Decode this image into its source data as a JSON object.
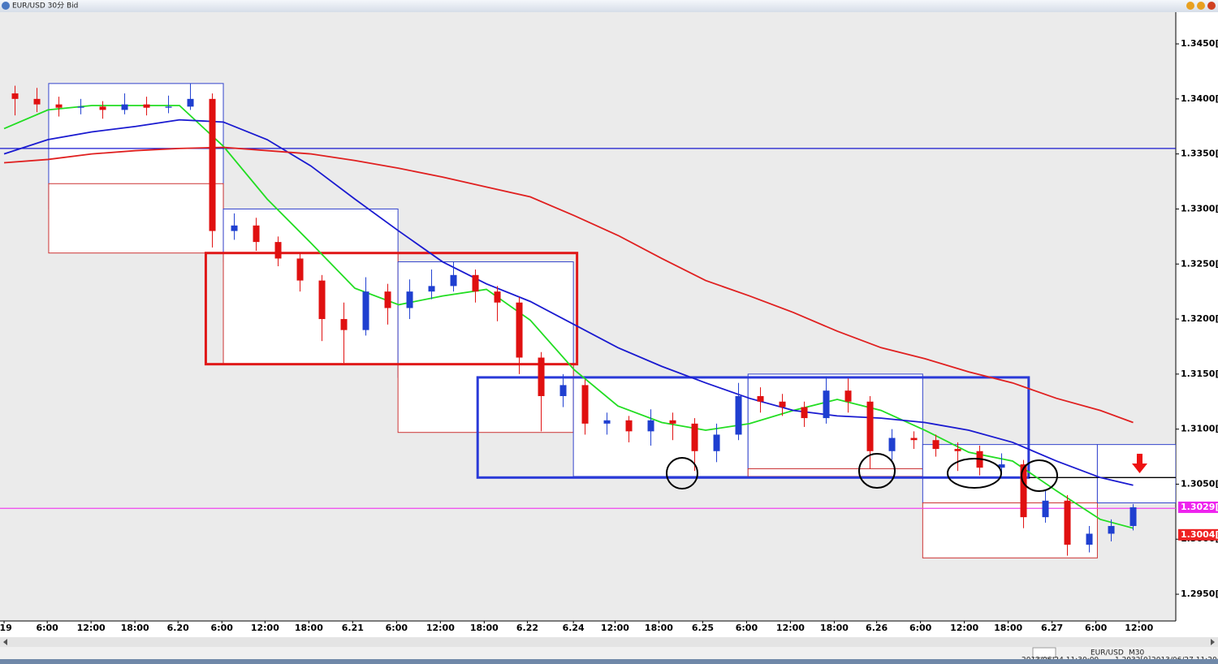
{
  "window": {
    "title": "EUR/USD 30分 Bid"
  },
  "chart_data": {
    "type": "candlestick",
    "x": [
      1.5,
      4.5,
      7.5,
      10.5,
      13.5,
      16.5,
      19.5,
      22.5,
      25.5,
      28.5,
      31.5,
      34.5,
      37.5,
      40.5,
      43.5,
      46.5,
      49.5,
      52.5,
      55.5,
      58.5,
      61.5,
      64.5,
      67.5,
      70.5,
      73.5,
      76.5,
      79.5,
      82.5,
      85.5,
      88.5,
      91.5,
      94.5,
      97.5,
      100.5,
      103.5,
      106.5,
      109.5,
      112.5,
      115.5,
      118.5,
      121.5,
      124.5,
      127.5,
      130.5,
      133.5,
      136.5,
      139.5,
      142.5,
      145.5,
      148.5,
      151.5,
      154.5
    ],
    "open": [
      1.3405,
      1.34,
      1.3395,
      1.3392,
      1.3393,
      1.339,
      1.3395,
      1.3392,
      1.3393,
      1.34,
      1.328,
      1.3285,
      1.327,
      1.3255,
      1.3235,
      1.32,
      1.319,
      1.3225,
      1.321,
      1.3225,
      1.323,
      1.324,
      1.3225,
      1.3215,
      1.3165,
      1.313,
      1.314,
      1.3105,
      1.3108,
      1.3098,
      1.3108,
      1.3105,
      1.308,
      1.3095,
      1.313,
      1.3125,
      1.312,
      1.311,
      1.3135,
      1.3125,
      1.308,
      1.3092,
      1.309,
      1.3082,
      1.308,
      1.3065,
      1.3068,
      1.302,
      1.3035,
      1.2995,
      1.3005,
      1.3012
    ],
    "high": [
      1.3412,
      1.341,
      1.3402,
      1.34,
      1.3398,
      1.3405,
      1.3402,
      1.3403,
      1.3414,
      1.3405,
      1.3296,
      1.3292,
      1.3275,
      1.326,
      1.324,
      1.3215,
      1.3238,
      1.3232,
      1.3236,
      1.3245,
      1.3252,
      1.3245,
      1.323,
      1.322,
      1.317,
      1.315,
      1.3145,
      1.3115,
      1.3112,
      1.3118,
      1.3115,
      1.311,
      1.3105,
      1.3142,
      1.3138,
      1.3132,
      1.3125,
      1.3148,
      1.3146,
      1.313,
      1.31,
      1.3098,
      1.3095,
      1.3088,
      1.3085,
      1.3078,
      1.3072,
      1.3045,
      1.304,
      1.3012,
      1.3018,
      1.3032
    ],
    "low": [
      1.3385,
      1.3388,
      1.3384,
      1.3386,
      1.3382,
      1.3386,
      1.3385,
      1.3387,
      1.339,
      1.3265,
      1.3272,
      1.3262,
      1.3248,
      1.3225,
      1.318,
      1.316,
      1.3185,
      1.3195,
      1.32,
      1.3218,
      1.3225,
      1.3215,
      1.3198,
      1.315,
      1.3098,
      1.312,
      1.3095,
      1.3095,
      1.3088,
      1.3085,
      1.309,
      1.3062,
      1.307,
      1.309,
      1.3115,
      1.3112,
      1.3102,
      1.3105,
      1.3115,
      1.3064,
      1.3072,
      1.3082,
      1.3075,
      1.3062,
      1.3058,
      1.306,
      1.301,
      1.3015,
      1.2985,
      1.2988,
      1.2998,
      1.3008
    ],
    "close": [
      1.34,
      1.3395,
      1.3392,
      1.3393,
      1.339,
      1.3395,
      1.3392,
      1.3393,
      1.34,
      1.328,
      1.3285,
      1.327,
      1.3255,
      1.3235,
      1.32,
      1.319,
      1.3225,
      1.321,
      1.3225,
      1.323,
      1.324,
      1.3225,
      1.3215,
      1.3165,
      1.313,
      1.314,
      1.3105,
      1.3108,
      1.3098,
      1.3108,
      1.3105,
      1.308,
      1.3095,
      1.313,
      1.3125,
      1.312,
      1.311,
      1.3135,
      1.3125,
      1.308,
      1.3092,
      1.309,
      1.3082,
      1.308,
      1.3065,
      1.3068,
      1.302,
      1.3035,
      1.2995,
      1.3005,
      1.3012,
      1.3029
    ],
    "up_color": "#1f3fd0",
    "down_color": "#e01010",
    "lines": [
      {
        "color": "#22dd22",
        "x": [
          0,
          6,
          12,
          18,
          24,
          30,
          36,
          42,
          48,
          54,
          60,
          66,
          72,
          78,
          84,
          90,
          96,
          102,
          108,
          114,
          120,
          126,
          132,
          138,
          144,
          150,
          154.5
        ],
        "values": [
          1.3373,
          1.339,
          1.3394,
          1.3394,
          1.3394,
          1.3357,
          1.3309,
          1.3269,
          1.3228,
          1.3213,
          1.3221,
          1.3227,
          1.3199,
          1.3154,
          1.3121,
          1.3106,
          1.3099,
          1.3105,
          1.3117,
          1.3127,
          1.3117,
          1.3099,
          1.3079,
          1.3071,
          1.3044,
          1.3018,
          1.301
        ]
      },
      {
        "color": "#1a1ad0",
        "x": [
          0,
          6,
          12,
          18,
          24,
          30,
          36,
          42,
          48,
          54,
          60,
          66,
          72,
          78,
          84,
          90,
          96,
          102,
          108,
          114,
          120,
          126,
          132,
          138,
          144,
          150,
          154.5
        ],
        "values": [
          1.335,
          1.3363,
          1.337,
          1.3375,
          1.3381,
          1.3379,
          1.3363,
          1.3339,
          1.3309,
          1.328,
          1.3252,
          1.3232,
          1.3216,
          1.3195,
          1.3174,
          1.3157,
          1.3142,
          1.3128,
          1.3117,
          1.3112,
          1.311,
          1.3106,
          1.3099,
          1.3088,
          1.3071,
          1.3056,
          1.3049
        ]
      },
      {
        "color": "#e02020",
        "x": [
          0,
          6,
          12,
          18,
          24,
          30,
          36,
          42,
          48,
          54,
          60,
          66,
          72,
          78,
          84,
          90,
          96,
          102,
          108,
          114,
          120,
          126,
          132,
          138,
          144,
          150,
          154.5
        ],
        "values": [
          1.3342,
          1.3345,
          1.335,
          1.3353,
          1.3355,
          1.3356,
          1.3353,
          1.335,
          1.3344,
          1.3337,
          1.3329,
          1.332,
          1.3311,
          1.3294,
          1.3276,
          1.3255,
          1.3235,
          1.3221,
          1.3206,
          1.3189,
          1.3174,
          1.3164,
          1.3152,
          1.3142,
          1.3128,
          1.3117,
          1.3106
        ]
      }
    ],
    "hlines": [
      {
        "value": 1.3355,
        "color": "#1a1ad0",
        "x_start": -0.56
      },
      {
        "value": 1.3028,
        "color": "#ee44ee",
        "x_start": -0.56
      },
      {
        "value": 1.3056,
        "color": "#000000",
        "x_start": 140.2
      }
    ],
    "boxes": [
      {
        "x": [
          6.1,
          30
        ],
        "range": [
          1.33,
          1.3414
        ],
        "color": "#3344cc",
        "width": 1
      },
      {
        "x": [
          6.1,
          30
        ],
        "range": [
          1.326,
          1.3323
        ],
        "color": "#cc3333",
        "width": 1
      },
      {
        "x": [
          30,
          53.9
        ],
        "range": [
          1.3252,
          1.33
        ],
        "color": "#3344cc",
        "width": 1
      },
      {
        "x": [
          30,
          53.9
        ],
        "range": [
          1.3159,
          1.326
        ],
        "color": "#cc3333",
        "width": 1
      },
      {
        "x": [
          53.9,
          77.9
        ],
        "range": [
          1.3147,
          1.3252
        ],
        "color": "#3344cc",
        "width": 1
      },
      {
        "x": [
          53.9,
          77.9
        ],
        "range": [
          1.3097,
          1.3159
        ],
        "color": "#cc3333",
        "width": 1
      },
      {
        "x": [
          77.9,
          101.8
        ],
        "range": [
          1.3057,
          1.3147
        ],
        "color": "#3344cc",
        "width": 1
      },
      {
        "x": [
          101.8,
          125.7
        ],
        "range": [
          1.3064,
          1.315
        ],
        "color": "#3344cc",
        "width": 1
      },
      {
        "x": [
          101.8,
          125.7
        ],
        "range": [
          1.3057,
          1.3064
        ],
        "color": "#cc3333",
        "width": 1
      },
      {
        "x": [
          125.7,
          149.6
        ],
        "range": [
          1.3033,
          1.3086
        ],
        "color": "#3344cc",
        "width": 1
      },
      {
        "x": [
          125.7,
          149.6
        ],
        "range": [
          1.2983,
          1.3033
        ],
        "color": "#cc3333",
        "width": 1
      },
      {
        "x": [
          149.6,
          160.33
        ],
        "range": [
          1.3033,
          1.3086
        ],
        "color": "#3344cc",
        "width": 1
      },
      {
        "x": [
          27.6,
          78.4
        ],
        "range": [
          1.3159,
          1.326
        ],
        "color": "#e01818",
        "width": 3
      },
      {
        "x": [
          64.8,
          140.2
        ],
        "range": [
          1.3056,
          1.3147
        ],
        "color": "#2a3ad8",
        "width": 3
      }
    ],
    "price_tags": [
      {
        "value": 1.3029,
        "label": "1.3029[6",
        "color": "#ee22ee"
      },
      {
        "value": 1.3004,
        "label": "1.3004[2",
        "color": "#ee2222"
      }
    ],
    "xlim": [
      -0.56,
      160.33
    ],
    "xticks": [
      {
        "value": 0,
        "label": ".19"
      },
      {
        "value": 5.9,
        "label": "6:00"
      },
      {
        "value": 11.9,
        "label": "12:00"
      },
      {
        "value": 17.9,
        "label": "18:00"
      },
      {
        "value": 23.8,
        "label": "6.20"
      },
      {
        "value": 29.8,
        "label": "6:00"
      },
      {
        "value": 35.7,
        "label": "12:00"
      },
      {
        "value": 41.7,
        "label": "18:00"
      },
      {
        "value": 47.7,
        "label": "6.21"
      },
      {
        "value": 53.7,
        "label": "6:00"
      },
      {
        "value": 59.7,
        "label": "12:00"
      },
      {
        "value": 65.7,
        "label": "18:00"
      },
      {
        "value": 71.6,
        "label": "6.22"
      },
      {
        "value": 77.9,
        "label": "6.24"
      },
      {
        "value": 83.6,
        "label": "12:00"
      },
      {
        "value": 89.6,
        "label": "18:00"
      },
      {
        "value": 95.6,
        "label": "6.25"
      },
      {
        "value": 101.6,
        "label": "6:00"
      },
      {
        "value": 107.6,
        "label": "12:00"
      },
      {
        "value": 113.6,
        "label": "18:00"
      },
      {
        "value": 119.4,
        "label": "6.26"
      },
      {
        "value": 125.4,
        "label": "6:00"
      },
      {
        "value": 131.4,
        "label": "12:00"
      },
      {
        "value": 137.4,
        "label": "18:00"
      },
      {
        "value": 143.4,
        "label": "6.27"
      },
      {
        "value": 149.4,
        "label": "6:00"
      },
      {
        "value": 155.3,
        "label": "12:00"
      }
    ],
    "ylim": [
      1.29257,
      1.34788
    ],
    "yticks": [
      {
        "value": 1.345,
        "label": "1.3450[0"
      },
      {
        "value": 1.34,
        "label": "1.3400[0"
      },
      {
        "value": 1.335,
        "label": "1.3350[0"
      },
      {
        "value": 1.33,
        "label": "1.3300[0"
      },
      {
        "value": 1.325,
        "label": "1.3250[0"
      },
      {
        "value": 1.32,
        "label": "1.3200[0"
      },
      {
        "value": 1.315,
        "label": "1.3150[0"
      },
      {
        "value": 1.31,
        "label": "1.3100[0"
      },
      {
        "value": 1.305,
        "label": "1.3050[0"
      },
      {
        "value": 1.3,
        "label": "1.3000[0"
      },
      {
        "value": 1.295,
        "label": "1.2950[0"
      }
    ]
  },
  "status_bar": {
    "symbol": "EUR/USD",
    "timeframe": "M30",
    "start_time": "2013/06/24 11:30:00",
    "price": "1.2932[0]",
    "now_time": "2013/06/27 11:20:33"
  }
}
